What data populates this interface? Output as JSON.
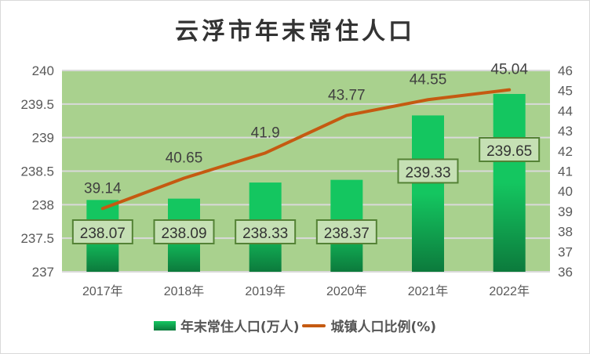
{
  "chart_data": {
    "type": "bar",
    "title": "云浮市年末常住人口",
    "categories": [
      "2017年",
      "2018年",
      "2019年",
      "2020年",
      "2021年",
      "2022年"
    ],
    "series": [
      {
        "name": "年末常住人口(万人)",
        "type": "bar",
        "axis": "left",
        "values": [
          238.07,
          238.09,
          238.33,
          238.37,
          239.33,
          239.65
        ],
        "labels": [
          "238.07",
          "238.09",
          "238.33",
          "238.37",
          "239.33",
          "239.65"
        ]
      },
      {
        "name": "城镇人口比例(%)",
        "type": "line",
        "axis": "right",
        "values": [
          39.14,
          40.65,
          41.9,
          43.77,
          44.55,
          45.04
        ],
        "labels": [
          "39.14",
          "40.65",
          "41.9",
          "43.77",
          "44.55",
          "45.04"
        ]
      }
    ],
    "y_left": {
      "min": 237,
      "max": 240,
      "ticks": [
        "237",
        "237.5",
        "238",
        "238.5",
        "239",
        "239.5",
        "240"
      ]
    },
    "y_right": {
      "min": 36,
      "max": 46,
      "ticks": [
        "36",
        "37",
        "38",
        "39",
        "40",
        "41",
        "42",
        "43",
        "44",
        "45",
        "46"
      ]
    },
    "legend": "bottom",
    "grid": true,
    "colors": {
      "plot_bg": "#a9d18e",
      "bar_top": "#14c660",
      "bar_bottom": "#0c7a3c",
      "line": "#c55a11",
      "label_box": "#c5e0b4",
      "label_border": "#548235"
    }
  }
}
